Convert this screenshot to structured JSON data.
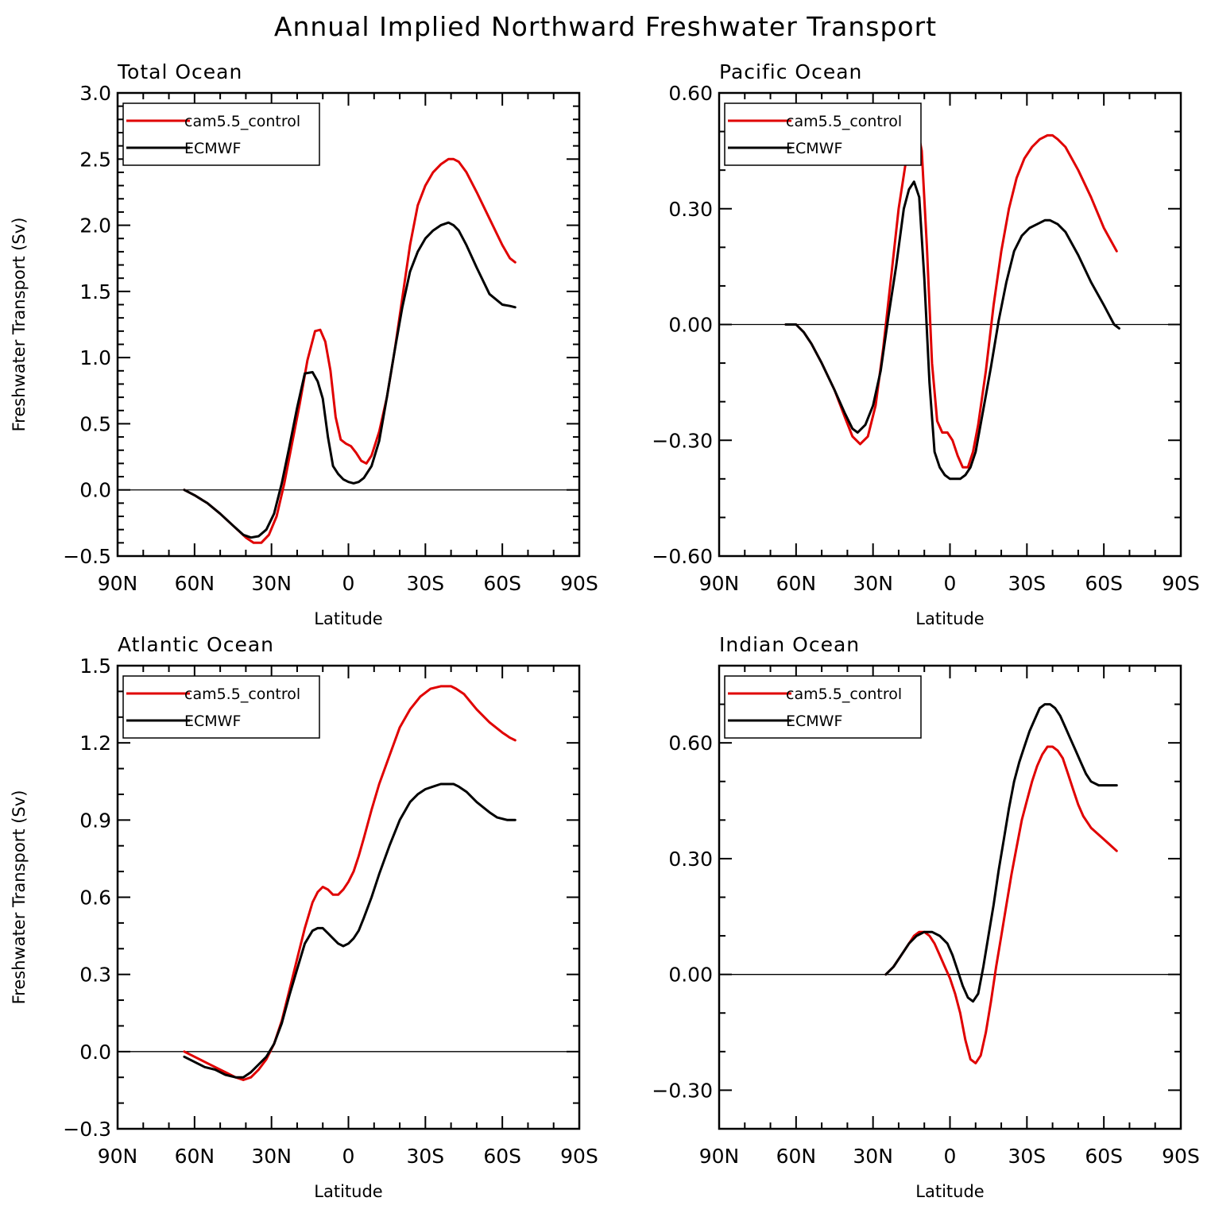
{
  "title": "Annual Implied Northward Freshwater Transport",
  "colors": {
    "model": "#e00000",
    "obs": "#000000"
  },
  "chart_data": [
    {
      "type": "line",
      "panel_title": "Total Ocean",
      "xlabel": "Latitude",
      "ylabel": "Freshwater Transport (Sv)",
      "xlim": [
        -90,
        90
      ],
      "ylim": [
        -0.5,
        3.0
      ],
      "xticks": [
        -90,
        -60,
        -30,
        0,
        30,
        60,
        90
      ],
      "xtick_labels": [
        "90N",
        "60N",
        "30N",
        "0",
        "30S",
        "60S",
        "90S"
      ],
      "yticks": [
        -0.5,
        0.0,
        0.5,
        1.0,
        1.5,
        2.0,
        2.5,
        3.0
      ],
      "ytick_labels": [
        "−0.5",
        "0.0",
        "0.5",
        "1.0",
        "1.5",
        "2.0",
        "2.5",
        "3.0"
      ],
      "yminor": 5,
      "zero_line": true,
      "legend": [
        "cam5.5_control",
        "ECMWF"
      ],
      "series": [
        {
          "name": "cam5.5_control",
          "color": "#e00000",
          "x": [
            -64,
            -60,
            -55,
            -50,
            -45,
            -40,
            -37,
            -34,
            -31,
            -28,
            -25,
            -22,
            -19,
            -16,
            -13,
            -11,
            -9,
            -7,
            -5,
            -3,
            -1,
            1,
            3,
            5,
            7,
            9,
            12,
            15,
            18,
            21,
            24,
            27,
            30,
            33,
            36,
            39,
            41,
            43,
            46,
            50,
            55,
            60,
            63,
            65
          ],
          "y": [
            0.0,
            -0.04,
            -0.1,
            -0.18,
            -0.27,
            -0.36,
            -0.4,
            -0.4,
            -0.34,
            -0.2,
            0.05,
            0.35,
            0.65,
            0.98,
            1.2,
            1.21,
            1.12,
            0.9,
            0.55,
            0.38,
            0.35,
            0.33,
            0.28,
            0.22,
            0.2,
            0.26,
            0.44,
            0.7,
            1.05,
            1.45,
            1.85,
            2.15,
            2.3,
            2.4,
            2.46,
            2.5,
            2.5,
            2.48,
            2.4,
            2.25,
            2.05,
            1.85,
            1.75,
            1.72
          ]
        },
        {
          "name": "ECMWF",
          "color": "#000000",
          "x": [
            -64,
            -60,
            -55,
            -50,
            -45,
            -41,
            -38,
            -35,
            -32,
            -29,
            -26,
            -23,
            -20,
            -17,
            -14,
            -12,
            -10,
            -8,
            -6,
            -4,
            -2,
            0,
            2,
            4,
            6,
            9,
            12,
            15,
            18,
            21,
            24,
            27,
            30,
            33,
            36,
            39,
            41,
            43,
            46,
            50,
            55,
            60,
            63,
            65
          ],
          "y": [
            0.0,
            -0.04,
            -0.1,
            -0.18,
            -0.27,
            -0.34,
            -0.36,
            -0.35,
            -0.3,
            -0.18,
            0.05,
            0.33,
            0.62,
            0.88,
            0.89,
            0.82,
            0.69,
            0.4,
            0.18,
            0.12,
            0.08,
            0.06,
            0.05,
            0.06,
            0.09,
            0.18,
            0.37,
            0.7,
            1.05,
            1.38,
            1.65,
            1.8,
            1.9,
            1.96,
            2.0,
            2.02,
            2.0,
            1.96,
            1.85,
            1.68,
            1.48,
            1.4,
            1.39,
            1.38
          ]
        }
      ]
    },
    {
      "type": "line",
      "panel_title": "Pacific Ocean",
      "xlabel": "Latitude",
      "ylabel": "",
      "xlim": [
        -90,
        90
      ],
      "ylim": [
        -0.6,
        0.6
      ],
      "xticks": [
        -90,
        -60,
        -30,
        0,
        30,
        60,
        90
      ],
      "xtick_labels": [
        "90N",
        "60N",
        "30N",
        "0",
        "30S",
        "60S",
        "90S"
      ],
      "yticks": [
        -0.6,
        -0.3,
        0.0,
        0.3,
        0.6
      ],
      "ytick_labels": [
        "−0.60",
        "−0.30",
        "0.00",
        "0.30",
        "0.60"
      ],
      "yminor": 3,
      "zero_line": true,
      "legend": [
        "cam5.5_control",
        "ECMWF"
      ],
      "series": [
        {
          "name": "cam5.5_control",
          "color": "#e00000",
          "x": [
            -64,
            -60,
            -57,
            -54,
            -50,
            -45,
            -41,
            -38,
            -35,
            -32,
            -29,
            -26,
            -23,
            -20,
            -17,
            -15,
            -13,
            -11,
            -9,
            -7,
            -5,
            -3,
            -1,
            1,
            3,
            5,
            7,
            9,
            11,
            14,
            17,
            20,
            23,
            26,
            29,
            32,
            35,
            38,
            40,
            42,
            45,
            50,
            55,
            60,
            65
          ],
          "y": [
            0.0,
            0.0,
            -0.02,
            -0.05,
            -0.1,
            -0.17,
            -0.24,
            -0.29,
            -0.31,
            -0.29,
            -0.21,
            -0.06,
            0.12,
            0.3,
            0.43,
            0.5,
            0.52,
            0.45,
            0.2,
            -0.1,
            -0.25,
            -0.28,
            -0.28,
            -0.3,
            -0.34,
            -0.37,
            -0.37,
            -0.33,
            -0.26,
            -0.12,
            0.05,
            0.19,
            0.3,
            0.38,
            0.43,
            0.46,
            0.48,
            0.49,
            0.49,
            0.48,
            0.46,
            0.4,
            0.33,
            0.25,
            0.19
          ]
        },
        {
          "name": "ECMWF",
          "color": "#000000",
          "x": [
            -64,
            -60,
            -57,
            -54,
            -50,
            -45,
            -41,
            -38,
            -36,
            -33,
            -30,
            -27,
            -24,
            -21,
            -18,
            -16,
            -14,
            -12,
            -10,
            -8,
            -6,
            -4,
            -2,
            0,
            2,
            4,
            6,
            8,
            10,
            13,
            16,
            19,
            22,
            25,
            28,
            31,
            34,
            37,
            39,
            42,
            45,
            50,
            55,
            60,
            64,
            66
          ],
          "y": [
            0.0,
            0.0,
            -0.02,
            -0.05,
            -0.1,
            -0.17,
            -0.23,
            -0.27,
            -0.28,
            -0.26,
            -0.21,
            -0.12,
            0.02,
            0.15,
            0.3,
            0.35,
            0.37,
            0.33,
            0.12,
            -0.15,
            -0.33,
            -0.37,
            -0.39,
            -0.4,
            -0.4,
            -0.4,
            -0.39,
            -0.37,
            -0.33,
            -0.22,
            -0.11,
            0.01,
            0.11,
            0.19,
            0.23,
            0.25,
            0.26,
            0.27,
            0.27,
            0.26,
            0.24,
            0.18,
            0.11,
            0.05,
            0.0,
            -0.01
          ]
        }
      ]
    },
    {
      "type": "line",
      "panel_title": "Atlantic Ocean",
      "xlabel": "Latitude",
      "ylabel": "Freshwater Transport (Sv)",
      "xlim": [
        -90,
        90
      ],
      "ylim": [
        -0.3,
        1.5
      ],
      "xticks": [
        -90,
        -60,
        -30,
        0,
        30,
        60,
        90
      ],
      "xtick_labels": [
        "90N",
        "60N",
        "30N",
        "0",
        "30S",
        "60S",
        "90S"
      ],
      "yticks": [
        -0.3,
        0.0,
        0.3,
        0.6,
        0.9,
        1.2,
        1.5
      ],
      "ytick_labels": [
        "−0.3",
        "0.0",
        "0.3",
        "0.6",
        "0.9",
        "1.2",
        "1.5"
      ],
      "yminor": 3,
      "zero_line": true,
      "legend": [
        "cam5.5_control",
        "ECMWF"
      ],
      "series": [
        {
          "name": "cam5.5_control",
          "color": "#e00000",
          "x": [
            -64,
            -60,
            -56,
            -52,
            -48,
            -44,
            -41,
            -38,
            -35,
            -32,
            -29,
            -26,
            -23,
            -20,
            -17,
            -14,
            -12,
            -10,
            -8,
            -6,
            -4,
            -2,
            0,
            2,
            4,
            6,
            9,
            12,
            16,
            20,
            24,
            28,
            32,
            36,
            40,
            42,
            45,
            50,
            55,
            60,
            63,
            65
          ],
          "y": [
            0.0,
            -0.02,
            -0.04,
            -0.06,
            -0.08,
            -0.1,
            -0.11,
            -0.1,
            -0.07,
            -0.03,
            0.03,
            0.12,
            0.24,
            0.36,
            0.48,
            0.58,
            0.62,
            0.64,
            0.63,
            0.61,
            0.61,
            0.63,
            0.66,
            0.7,
            0.76,
            0.83,
            0.94,
            1.04,
            1.15,
            1.26,
            1.33,
            1.38,
            1.41,
            1.42,
            1.42,
            1.41,
            1.39,
            1.33,
            1.28,
            1.24,
            1.22,
            1.21
          ]
        },
        {
          "name": "ECMWF",
          "color": "#000000",
          "x": [
            -64,
            -60,
            -56,
            -52,
            -48,
            -44,
            -41,
            -38,
            -35,
            -32,
            -29,
            -26,
            -23,
            -20,
            -17,
            -14,
            -12,
            -10,
            -8,
            -6,
            -4,
            -2,
            0,
            2,
            4,
            6,
            9,
            12,
            16,
            20,
            24,
            27,
            30,
            33,
            36,
            39,
            41,
            43,
            46,
            50,
            55,
            58,
            62,
            65
          ],
          "y": [
            -0.02,
            -0.04,
            -0.06,
            -0.07,
            -0.09,
            -0.1,
            -0.1,
            -0.08,
            -0.05,
            -0.02,
            0.03,
            0.11,
            0.22,
            0.32,
            0.42,
            0.47,
            0.48,
            0.48,
            0.46,
            0.44,
            0.42,
            0.41,
            0.42,
            0.44,
            0.47,
            0.52,
            0.6,
            0.69,
            0.8,
            0.9,
            0.97,
            1.0,
            1.02,
            1.03,
            1.04,
            1.04,
            1.04,
            1.03,
            1.01,
            0.97,
            0.93,
            0.91,
            0.9,
            0.9
          ]
        }
      ]
    },
    {
      "type": "line",
      "panel_title": "Indian Ocean",
      "xlabel": "Latitude",
      "ylabel": "",
      "xlim": [
        -90,
        90
      ],
      "ylim": [
        -0.4,
        0.8
      ],
      "xticks": [
        -90,
        -60,
        -30,
        0,
        30,
        60,
        90
      ],
      "xtick_labels": [
        "90N",
        "60N",
        "30N",
        "0",
        "30S",
        "60S",
        "90S"
      ],
      "yticks": [
        -0.3,
        0.0,
        0.3,
        0.6
      ],
      "ytick_labels": [
        "−0.30",
        "0.00",
        "0.30",
        "0.60"
      ],
      "yminor": 3,
      "zero_line": true,
      "legend": [
        "cam5.5_control",
        "ECMWF"
      ],
      "series": [
        {
          "name": "cam5.5_control",
          "color": "#e00000",
          "x": [
            -25,
            -22,
            -19,
            -16,
            -14,
            -12,
            -10,
            -8,
            -6,
            -4,
            -2,
            0,
            2,
            4,
            6,
            8,
            10,
            12,
            14,
            16,
            18,
            20,
            22,
            24,
            26,
            28,
            30,
            32,
            34,
            36,
            38,
            40,
            42,
            44,
            46,
            48,
            50,
            52,
            55,
            60,
            65
          ],
          "y": [
            0.0,
            0.02,
            0.05,
            0.08,
            0.1,
            0.11,
            0.11,
            0.1,
            0.08,
            0.05,
            0.02,
            -0.01,
            -0.05,
            -0.1,
            -0.17,
            -0.22,
            -0.23,
            -0.21,
            -0.15,
            -0.07,
            0.02,
            0.1,
            0.18,
            0.26,
            0.33,
            0.4,
            0.45,
            0.5,
            0.54,
            0.57,
            0.59,
            0.59,
            0.58,
            0.56,
            0.52,
            0.48,
            0.44,
            0.41,
            0.38,
            0.35,
            0.32
          ]
        },
        {
          "name": "ECMWF",
          "color": "#000000",
          "x": [
            -25,
            -22,
            -19,
            -16,
            -13,
            -10,
            -7,
            -4,
            -1,
            1,
            3,
            5,
            7,
            9,
            11,
            13,
            15,
            17,
            19,
            21,
            23,
            25,
            27,
            29,
            31,
            33,
            35,
            37,
            39,
            41,
            43,
            45,
            47,
            49,
            51,
            53,
            55,
            58,
            62,
            65
          ],
          "y": [
            0.0,
            0.02,
            0.05,
            0.08,
            0.1,
            0.11,
            0.11,
            0.1,
            0.08,
            0.05,
            0.01,
            -0.03,
            -0.06,
            -0.07,
            -0.05,
            0.02,
            0.1,
            0.18,
            0.27,
            0.35,
            0.43,
            0.5,
            0.55,
            0.59,
            0.63,
            0.66,
            0.69,
            0.7,
            0.7,
            0.69,
            0.67,
            0.64,
            0.61,
            0.58,
            0.55,
            0.52,
            0.5,
            0.49,
            0.49,
            0.49
          ]
        }
      ]
    }
  ]
}
